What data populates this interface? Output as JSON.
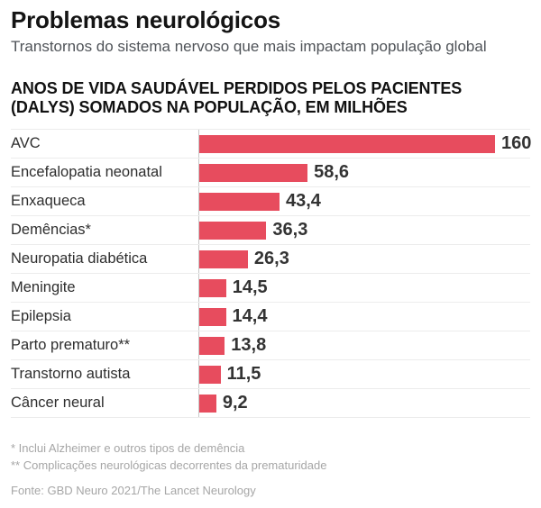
{
  "header": {
    "title": "Problemas neurológicos",
    "subtitle": "Transtornos do sistema nervoso que mais impactam população global"
  },
  "chart_heading": "ANOS DE VIDA SAUDÁVEL PERDIDOS PELOS PACIENTES\n(DALYS) SOMADOS NA POPULAÇÃO, EM MILHÕES",
  "chart_data": {
    "type": "bar",
    "orientation": "horizontal",
    "title": "ANOS DE VIDA SAUDÁVEL PERDIDOS PELOS PACIENTES (DALYS) SOMADOS NA POPULAÇÃO, EM MILHÕES",
    "categories": [
      "AVC",
      "Encefalopatia neonatal",
      "Enxaqueca",
      "Demências*",
      "Neuropatia diabética",
      "Meningite",
      "Epilepsia",
      "Parto prematuro**",
      "Transtorno autista",
      "Câncer neural"
    ],
    "values": [
      160,
      58.6,
      43.4,
      36.3,
      26.3,
      14.5,
      14.4,
      13.8,
      11.5,
      9.2
    ],
    "value_labels": [
      "160",
      "58,6",
      "43,4",
      "36,3",
      "26,3",
      "14,5",
      "14,4",
      "13,8",
      "11,5",
      "9,2"
    ],
    "xlim": [
      0,
      160
    ],
    "grid": false,
    "legend": false,
    "bar_color": "#e74c5e",
    "axis_line_color": "#c8c8c8",
    "separator_color": "#ececec"
  },
  "footer": {
    "footnotes": [
      "* Inclui Alzheimer e outros tipos de demência",
      "** Complicações neurológicas decorrentes da prematuridade"
    ],
    "source": "Fonte: GBD Neuro 2021/The Lancet Neurology"
  }
}
